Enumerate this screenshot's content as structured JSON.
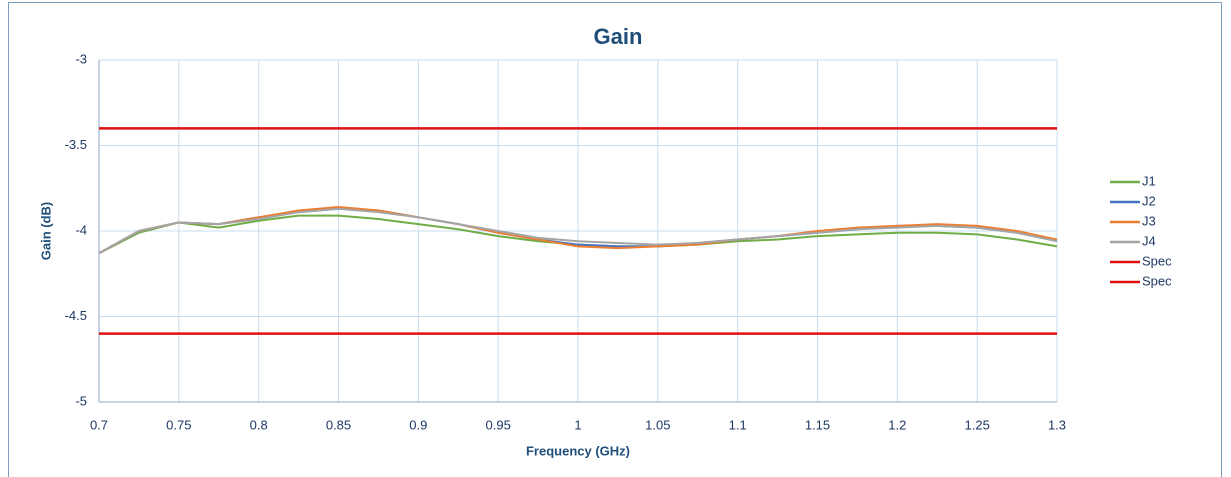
{
  "chart_data": {
    "type": "line",
    "title": "Gain",
    "x_label": "Frequency (GHz)",
    "y_label": "Gain (dB)",
    "x": [
      0.7,
      0.725,
      0.75,
      0.775,
      0.8,
      0.825,
      0.85,
      0.875,
      0.9,
      0.925,
      0.95,
      0.975,
      1.0,
      1.025,
      1.05,
      1.075,
      1.1,
      1.125,
      1.15,
      1.175,
      1.2,
      1.225,
      1.25,
      1.275,
      1.3
    ],
    "series": [
      {
        "name": "J1",
        "color": "#70ad47",
        "values": [
          -4.13,
          -4.01,
          -3.95,
          -3.98,
          -3.94,
          -3.91,
          -3.91,
          -3.93,
          -3.96,
          -3.99,
          -4.03,
          -4.06,
          -4.08,
          -4.09,
          -4.09,
          -4.08,
          -4.06,
          -4.05,
          -4.03,
          -4.02,
          -4.01,
          -4.01,
          -4.02,
          -4.05,
          -4.09
        ]
      },
      {
        "name": "J2",
        "color": "#4472c4",
        "values": [
          -4.13,
          -4.0,
          -3.95,
          -3.96,
          -3.92,
          -3.89,
          -3.87,
          -3.88,
          -3.92,
          -3.96,
          -4.01,
          -4.05,
          -4.08,
          -4.09,
          -4.09,
          -4.07,
          -4.05,
          -4.03,
          -4.01,
          -3.99,
          -3.97,
          -3.97,
          -3.98,
          -4.01,
          -4.05
        ]
      },
      {
        "name": "J3",
        "color": "#ed7d31",
        "values": [
          -4.13,
          -4.0,
          -3.95,
          -3.96,
          -3.92,
          -3.88,
          -3.86,
          -3.88,
          -3.92,
          -3.96,
          -4.01,
          -4.05,
          -4.09,
          -4.1,
          -4.09,
          -4.08,
          -4.05,
          -4.03,
          -4.0,
          -3.98,
          -3.97,
          -3.96,
          -3.97,
          -4.0,
          -4.05
        ]
      },
      {
        "name": "J4",
        "color": "#a5a5a5",
        "values": [
          -4.13,
          -4.0,
          -3.95,
          -3.96,
          -3.93,
          -3.89,
          -3.87,
          -3.89,
          -3.92,
          -3.96,
          -4.0,
          -4.04,
          -4.06,
          -4.07,
          -4.08,
          -4.07,
          -4.05,
          -4.03,
          -4.01,
          -3.99,
          -3.98,
          -3.97,
          -3.98,
          -4.01,
          -4.06
        ]
      },
      {
        "name": "Spec",
        "color": "#e01010",
        "values": [
          -3.4,
          -3.4,
          -3.4,
          -3.4,
          -3.4,
          -3.4,
          -3.4,
          -3.4,
          -3.4,
          -3.4,
          -3.4,
          -3.4,
          -3.4,
          -3.4,
          -3.4,
          -3.4,
          -3.4,
          -3.4,
          -3.4,
          -3.4,
          -3.4,
          -3.4,
          -3.4,
          -3.4,
          -3.4
        ]
      },
      {
        "name": "Spec",
        "color": "#e01010",
        "values": [
          -4.6,
          -4.6,
          -4.6,
          -4.6,
          -4.6,
          -4.6,
          -4.6,
          -4.6,
          -4.6,
          -4.6,
          -4.6,
          -4.6,
          -4.6,
          -4.6,
          -4.6,
          -4.6,
          -4.6,
          -4.6,
          -4.6,
          -4.6,
          -4.6,
          -4.6,
          -4.6,
          -4.6,
          -4.6
        ]
      }
    ],
    "xlim": [
      0.7,
      1.3
    ],
    "xticks": [
      0.7,
      0.75,
      0.8,
      0.85,
      0.9,
      0.95,
      1,
      1.05,
      1.1,
      1.15,
      1.2,
      1.25,
      1.3
    ],
    "ylim": [
      -5,
      -3
    ],
    "yticks": [
      -3,
      -3.5,
      -4,
      -4.5,
      -5
    ],
    "grid": true,
    "legend": "right"
  }
}
